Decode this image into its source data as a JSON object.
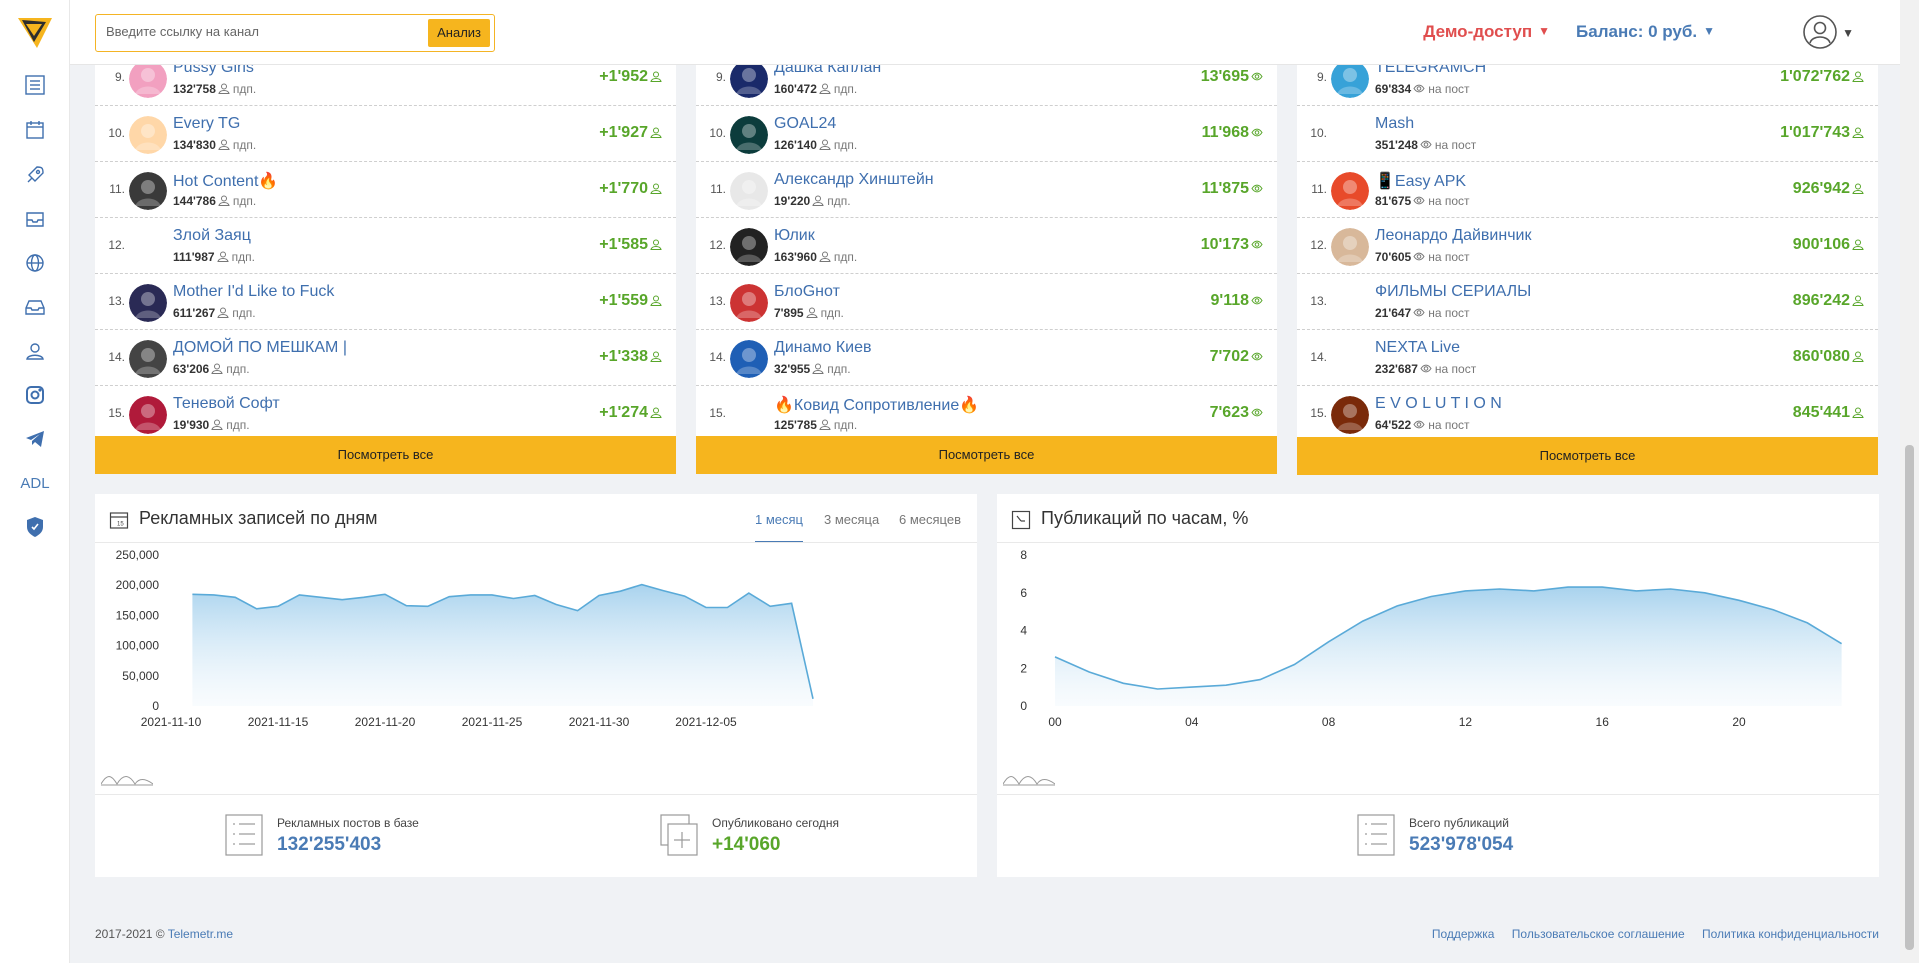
{
  "header": {
    "search_placeholder": "Введите ссылку на канал",
    "analyze_label": "Анализ",
    "demo_label": "Демо-доступ",
    "balance_label": "Баланс: 0 руб."
  },
  "sidebar": {
    "adl_label": "ADL",
    "icons": [
      "list-icon",
      "calendar-icon",
      "rocket-icon",
      "inbox-icon",
      "globe-icon",
      "tray-icon",
      "users-icon",
      "instagram-icon",
      "telegram-icon",
      "adl",
      "shield-icon"
    ]
  },
  "lists": [
    {
      "metric_icon": "subscriber-icon",
      "rows": [
        {
          "num": "9.",
          "name": "Pussy Girls",
          "count": "132'758",
          "unit": "пдп.",
          "value": "+1'952"
        },
        {
          "num": "10.",
          "name": "Every TG",
          "count": "134'830",
          "unit": "пдп.",
          "value": "+1'927"
        },
        {
          "num": "11.",
          "name": "Hot Content🔥",
          "count": "144'786",
          "unit": "пдп.",
          "value": "+1'770"
        },
        {
          "num": "12.",
          "name": "Злой Заяц",
          "count": "111'987",
          "unit": "пдп.",
          "value": "+1'585"
        },
        {
          "num": "13.",
          "name": "Mother I'd Like to Fuck",
          "count": "611'267",
          "unit": "пдп.",
          "value": "+1'559"
        },
        {
          "num": "14.",
          "name": "ДОМОЙ ПО МЕШКАМ |",
          "count": "63'206",
          "unit": "пдп.",
          "value": "+1'338"
        },
        {
          "num": "15.",
          "name": "Теневой Софт",
          "count": "19'930",
          "unit": "пдп.",
          "value": "+1'274"
        }
      ],
      "see_all": "Посмотреть все"
    },
    {
      "metric_icon": "eye-icon",
      "rows": [
        {
          "num": "9.",
          "name": "Дашка Каплан",
          "count": "160'472",
          "unit": "пдп.",
          "value": "13'695"
        },
        {
          "num": "10.",
          "name": "GOAL24",
          "count": "126'140",
          "unit": "пдп.",
          "value": "11'968"
        },
        {
          "num": "11.",
          "name": "Александр Хинштейн",
          "count": "19'220",
          "unit": "пдп.",
          "value": "11'875"
        },
        {
          "num": "12.",
          "name": "Юлик",
          "count": "163'960",
          "unit": "пдп.",
          "value": "10'173"
        },
        {
          "num": "13.",
          "name": "БлоGнот",
          "count": "7'895",
          "unit": "пдп.",
          "value": "9'118"
        },
        {
          "num": "14.",
          "name": "Динамо Киев",
          "count": "32'955",
          "unit": "пдп.",
          "value": "7'702"
        },
        {
          "num": "15.",
          "name": "🔥Ковид Сопротивление🔥",
          "count": "125'785",
          "unit": "пдп.",
          "value": "7'623"
        }
      ],
      "see_all": "Посмотреть все"
    },
    {
      "metric_icon": "subscriber-icon",
      "rows": [
        {
          "num": "9.",
          "name": "TELEGRAMCH",
          "count": "69'834",
          "unit": "на пост",
          "value": "1'072'762"
        },
        {
          "num": "10.",
          "name": "Mash",
          "count": "351'248",
          "unit": "на пост",
          "value": "1'017'743"
        },
        {
          "num": "11.",
          "name": "📱Easy APK",
          "count": "81'675",
          "unit": "на пост",
          "value": "926'942"
        },
        {
          "num": "12.",
          "name": "Леонардо Дайвинчик",
          "count": "70'605",
          "unit": "на пост",
          "value": "900'106"
        },
        {
          "num": "13.",
          "name": "ФИЛЬМЫ СЕРИАЛЫ",
          "count": "21'647",
          "unit": "на пост",
          "value": "896'242"
        },
        {
          "num": "14.",
          "name": "NEXTA Live",
          "count": "232'687",
          "unit": "на пост",
          "value": "860'080"
        },
        {
          "num": "15.",
          "name": "E V O L U T I O N",
          "count": "64'522",
          "unit": "на пост",
          "value": "845'441"
        }
      ],
      "see_all": "Посмотреть все"
    }
  ],
  "ad_panel": {
    "title": "Рекламных записей по дням",
    "tabs": [
      "1 месяц",
      "3 месяца",
      "6 месяцев"
    ],
    "active_tab": 0,
    "stats": [
      {
        "label": "Рекламных постов в базе",
        "value": "132'255'403",
        "color": "#4a7bb5"
      },
      {
        "label": "Опубликовано сегодня",
        "value": "+14'060",
        "color": "#58a62a"
      }
    ]
  },
  "pub_panel": {
    "title": "Публикаций по часам, %",
    "stats": [
      {
        "label": "Всего публикаций",
        "value": "523'978'054",
        "color": "#4a7bb5"
      }
    ]
  },
  "chart_data": [
    {
      "type": "area",
      "title": "Рекламных записей по дням",
      "x_tick_labels": [
        "2021-11-10",
        "2021-11-15",
        "2021-11-20",
        "2021-11-25",
        "2021-11-30",
        "2021-12-05"
      ],
      "y_tick_labels": [
        "250,000",
        "200,000",
        "150,000",
        "100,000",
        "50,000",
        "0"
      ],
      "ylim": [
        0,
        250000
      ],
      "x": [
        "2021-11-11",
        "2021-11-12",
        "2021-11-13",
        "2021-11-14",
        "2021-11-15",
        "2021-11-16",
        "2021-11-17",
        "2021-11-18",
        "2021-11-19",
        "2021-11-20",
        "2021-11-21",
        "2021-11-22",
        "2021-11-23",
        "2021-11-24",
        "2021-11-25",
        "2021-11-26",
        "2021-11-27",
        "2021-11-28",
        "2021-11-29",
        "2021-11-30",
        "2021-12-01",
        "2021-12-02",
        "2021-12-03",
        "2021-12-04",
        "2021-12-05",
        "2021-12-06",
        "2021-12-07",
        "2021-12-08",
        "2021-12-09"
      ],
      "values": [
        185000,
        184000,
        180000,
        161000,
        165000,
        184000,
        180000,
        176000,
        180000,
        185000,
        166000,
        165000,
        181000,
        184000,
        184000,
        178000,
        183000,
        168000,
        158000,
        183000,
        190000,
        201000,
        191000,
        182000,
        163000,
        163000,
        187000,
        165000,
        170000
      ],
      "last_value": 12000,
      "grid": false
    },
    {
      "type": "area",
      "title": "Публикаций по часам, %",
      "x_tick_labels": [
        "00",
        "04",
        "08",
        "12",
        "16",
        "20"
      ],
      "y_tick_labels": [
        "8",
        "6",
        "4",
        "2",
        "0"
      ],
      "ylim": [
        0,
        8
      ],
      "x": [
        0,
        1,
        2,
        3,
        4,
        5,
        6,
        7,
        8,
        9,
        10,
        11,
        12,
        13,
        14,
        15,
        16,
        17,
        18,
        19,
        20,
        21,
        22,
        23
      ],
      "values": [
        2.6,
        1.8,
        1.2,
        0.9,
        1.0,
        1.1,
        1.4,
        2.2,
        3.4,
        4.5,
        5.3,
        5.8,
        6.1,
        6.2,
        6.1,
        6.3,
        6.3,
        6.1,
        6.2,
        6.0,
        5.6,
        5.1,
        4.4,
        3.3
      ],
      "grid": false
    }
  ],
  "footer": {
    "copyright": "2017-2021 © ",
    "brand": "Telemetr.me",
    "links": [
      "Поддержка",
      "Пользовательское соглашение",
      "Политика конфиденциальности"
    ]
  }
}
